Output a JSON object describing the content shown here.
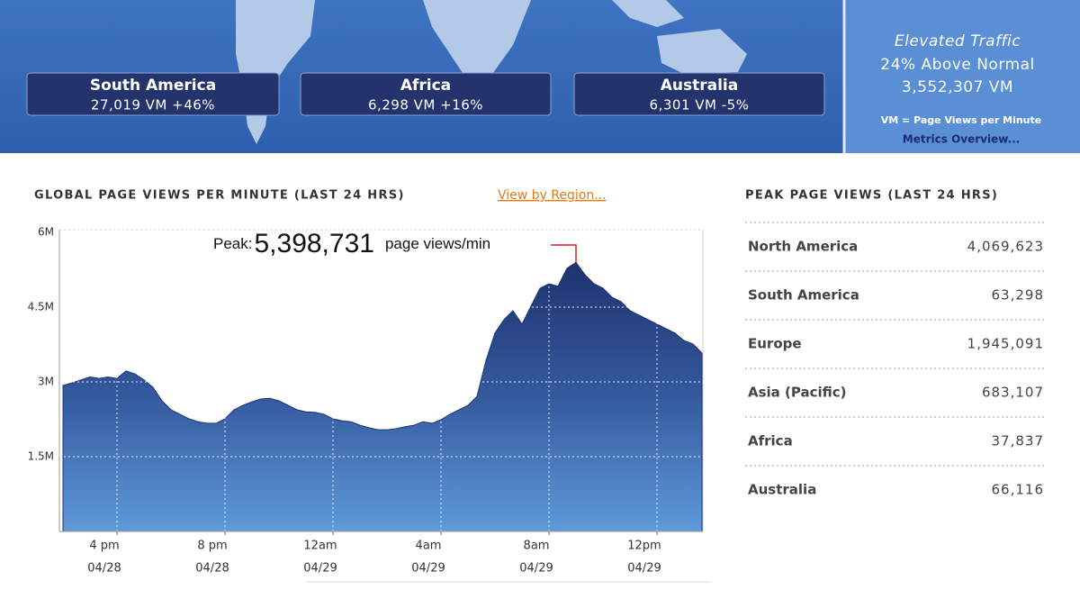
{
  "banner": {
    "regions": [
      {
        "name": "South America",
        "stat": "27,019 VM +46%"
      },
      {
        "name": "Africa",
        "stat": "6,298 VM +16%"
      },
      {
        "name": "Australia",
        "stat": "6,301 VM -5%"
      }
    ],
    "summary": {
      "title": "Elevated Traffic",
      "line1": "24% Above Normal",
      "line2": "3,552,307 VM",
      "note": "VM = Page Views per Minute",
      "link": "Metrics Overview..."
    }
  },
  "chart_data": {
    "type": "area",
    "title": "GLOBAL PAGE VIEWS PER MINUTE (LAST 24 HRS)",
    "link": "View by Region...",
    "categories": [
      null,
      null,
      null,
      null,
      null,
      null,
      [
        "4 pm",
        "04/28"
      ],
      null,
      null,
      null,
      null,
      null,
      null,
      null,
      null,
      null,
      null,
      null,
      [
        "8 pm",
        "04/28"
      ],
      null,
      null,
      null,
      null,
      null,
      null,
      null,
      null,
      null,
      null,
      null,
      [
        "12am",
        "04/29"
      ],
      null,
      null,
      null,
      null,
      null,
      null,
      null,
      null,
      null,
      null,
      null,
      [
        "4am",
        "04/29"
      ],
      null,
      null,
      null,
      null,
      null,
      null,
      null,
      null,
      null,
      null,
      null,
      [
        "8am",
        "04/29"
      ],
      null,
      null,
      null,
      null,
      null,
      null,
      null,
      null,
      null,
      null,
      null,
      [
        "12pm",
        "04/29"
      ],
      null,
      null,
      null,
      null,
      null
    ],
    "values": [
      2930000,
      2980000,
      3040000,
      3100000,
      3070000,
      3100000,
      3070000,
      3220000,
      3160000,
      3040000,
      2890000,
      2620000,
      2440000,
      2350000,
      2260000,
      2200000,
      2170000,
      2170000,
      2260000,
      2440000,
      2530000,
      2600000,
      2660000,
      2670000,
      2620000,
      2530000,
      2440000,
      2400000,
      2390000,
      2350000,
      2260000,
      2220000,
      2200000,
      2130000,
      2080000,
      2040000,
      2040000,
      2060000,
      2100000,
      2130000,
      2200000,
      2170000,
      2240000,
      2350000,
      2440000,
      2530000,
      2710000,
      3430000,
      3980000,
      4250000,
      4430000,
      4160000,
      4520000,
      4880000,
      4970000,
      4920000,
      5280000,
      5398731,
      5150000,
      4970000,
      4880000,
      4700000,
      4610000,
      4430000,
      4340000,
      4250000,
      4160000,
      4070000,
      3980000,
      3830000,
      3760000,
      3580000
    ],
    "color": "#1f3270",
    "ylim": [
      0,
      6000000
    ],
    "yticks": [
      {
        "value": 1500000,
        "label": "1.5M"
      },
      {
        "value": 3000000,
        "label": "3M"
      },
      {
        "value": 4500000,
        "label": "4.5M"
      },
      {
        "value": 6000000,
        "label": "6M"
      }
    ],
    "grid": true,
    "peak": {
      "prefix": "Peak:",
      "value": 5398731,
      "value_label": "5,398,731",
      "suffix": "page views/min"
    }
  },
  "peak_table": {
    "title": "PEAK PAGE VIEWS (LAST 24 HRS)",
    "rows": [
      [
        "North America",
        "4,069,623"
      ],
      [
        "South America",
        "63,298"
      ],
      [
        "Europe",
        "1,945,091"
      ],
      [
        "Asia (Pacific)",
        "683,107"
      ],
      [
        "Africa",
        "37,837"
      ],
      [
        "Australia",
        "66,116"
      ]
    ]
  }
}
